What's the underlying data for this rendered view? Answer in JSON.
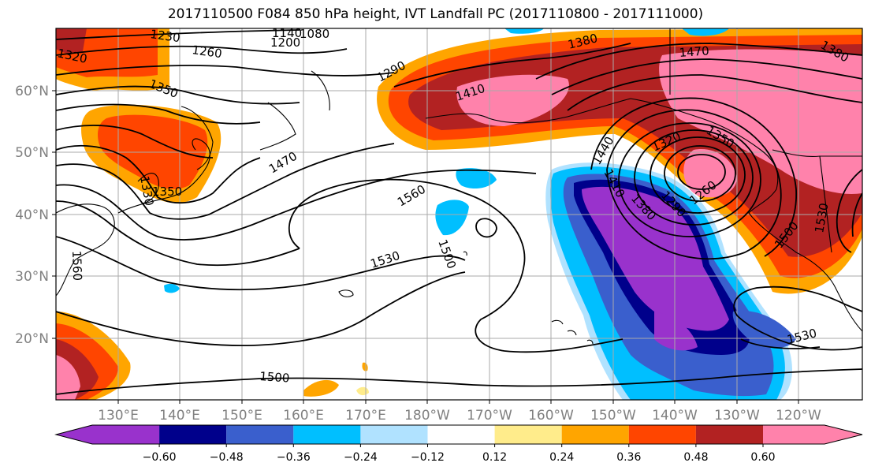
{
  "title": "2017110500 F084 850 hPa height, IVT Landfall PC (2017110800 - 2017111000)",
  "map": {
    "lon_ticks": [
      "130°E",
      "140°E",
      "150°E",
      "160°E",
      "170°E",
      "180°W",
      "170°W",
      "160°W",
      "150°W",
      "140°W",
      "130°W",
      "120°W"
    ],
    "lat_ticks": [
      "60°N",
      "50°N",
      "40°N",
      "30°N",
      "20°N"
    ],
    "contour_labels": [
      "1320",
      "1230",
      "1260",
      "1200",
      "1140",
      "1080",
      "1380",
      "1470",
      "1290",
      "1410",
      "1350",
      "1470",
      "1440",
      "1320",
      "1350",
      "1410",
      "1380",
      "1260",
      "1290",
      "1530",
      "1560",
      "1530",
      "1500",
      "1560",
      "1330",
      "1350",
      "1500",
      "1500",
      "1530",
      "1380"
    ],
    "grid": true
  },
  "colorbar": {
    "tick_labels": [
      "−0.60",
      "−0.48",
      "−0.36",
      "−0.24",
      "−0.12",
      "0.12",
      "0.24",
      "0.36",
      "0.48",
      "0.60"
    ],
    "colors": [
      "#9932CC",
      "#00008B",
      "#3A5FCD",
      "#00BFFF",
      "#B0E2FF",
      "#FFFFFF",
      "#FFEC8B",
      "#FFA500",
      "#FF4500",
      "#B22222",
      "#FF82AB"
    ],
    "extend": "both"
  }
}
